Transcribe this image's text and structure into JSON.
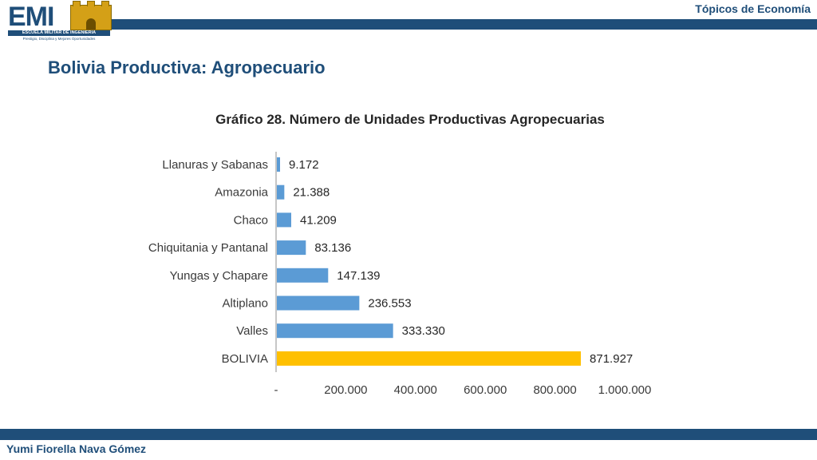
{
  "header": {
    "label": "Tópicos de Economía",
    "logo": {
      "text": "EMI",
      "subtitle": "ESCUELA MILITAR DE INGENIERIA",
      "motto": "Prestigio, Disciplina y Mejores Oportunidades",
      "icon": "castle-icon"
    }
  },
  "page": {
    "title": "Bolivia Productiva: Agropecuario"
  },
  "footer": {
    "author": "Yumi Fiorella Nava Gómez"
  },
  "colors": {
    "brand": "#1f4e79",
    "bar": "#5b9bd5",
    "bar_highlight": "#ffc000"
  },
  "chart_data": {
    "type": "bar",
    "orientation": "horizontal",
    "title": "Gráfico 28. Número de Unidades Productivas Agropecuarias",
    "categories": [
      "Llanuras y Sabanas",
      "Amazonia",
      "Chaco",
      "Chiquitania y Pantanal",
      "Yungas y Chapare",
      "Altiplano",
      "Valles",
      "BOLIVIA"
    ],
    "values": [
      9172,
      21388,
      41209,
      83136,
      147139,
      236553,
      333330,
      871927
    ],
    "value_labels": [
      "9.172",
      "21.388",
      "41.209",
      "83.136",
      "147.139",
      "236.553",
      "333.330",
      "871.927"
    ],
    "highlight": "BOLIVIA",
    "xlim": [
      0,
      1000000
    ],
    "xticks": [
      0,
      200000,
      400000,
      600000,
      800000,
      1000000
    ],
    "xtick_labels": [
      "-",
      "200.000",
      "400.000",
      "600.000",
      "800.000",
      "1.000.000"
    ],
    "grid": false,
    "legend": "none"
  }
}
